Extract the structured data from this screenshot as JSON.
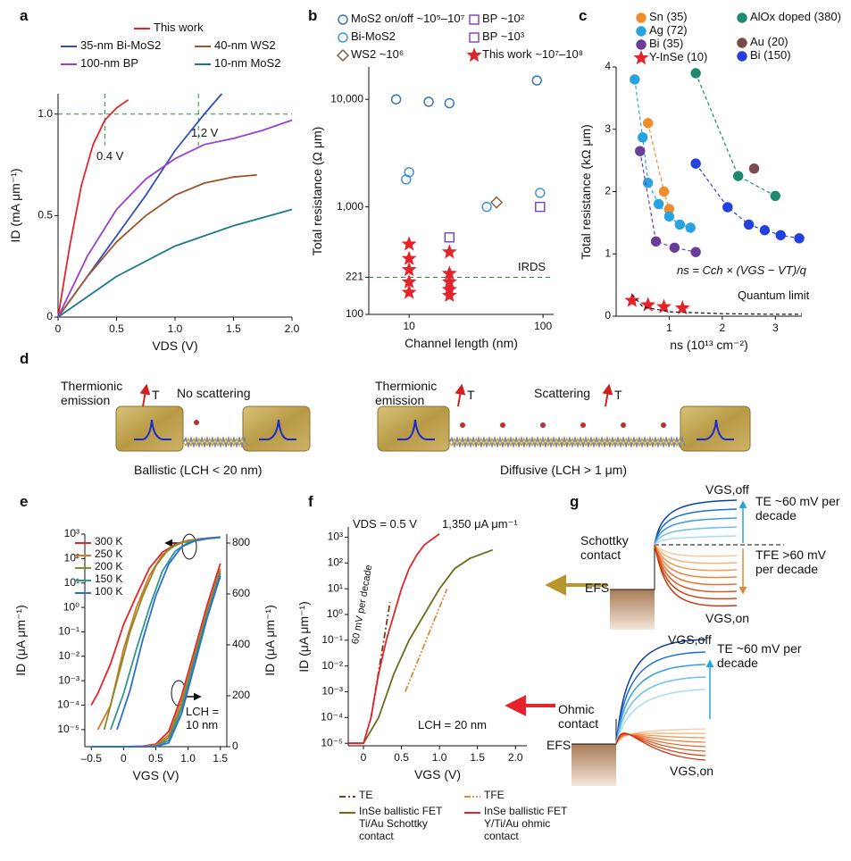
{
  "chart_data": [
    {
      "panel": "a",
      "type": "line",
      "xlabel": "VDS (V)",
      "ylabel": "ID (mA μm⁻¹)",
      "xlim": [
        0,
        2
      ],
      "xticks": [
        0,
        0.5,
        {
          "value": 1,
          "label": "1.0"
        },
        1.5,
        {
          "value": 2,
          "label": "2.0"
        }
      ],
      "ylim": [
        0,
        1.1
      ],
      "yticks": [
        0,
        0.5,
        {
          "value": 1,
          "label": "1.0"
        }
      ],
      "guides": {
        "x": [
          0.4,
          1.2
        ],
        "y": 1
      },
      "notes": [
        "0.4 V",
        "1.2 V"
      ],
      "series": [
        {
          "name": "This work",
          "color": "#e3242b",
          "x": [
            0,
            0.1,
            0.2,
            0.3,
            0.4,
            0.5,
            0.6
          ],
          "values": [
            0,
            0.35,
            0.65,
            0.85,
            0.97,
            1.03,
            1.07
          ]
        },
        {
          "name": "35-nm Bi-MoS2",
          "color": "#2f4fbf",
          "x": [
            0,
            0.25,
            0.5,
            0.75,
            1,
            1.25,
            1.4
          ],
          "values": [
            0,
            0.2,
            0.4,
            0.6,
            0.82,
            1.0,
            1.1
          ]
        },
        {
          "name": "40-nm WS2",
          "color": "#a0522d",
          "x": [
            0,
            0.25,
            0.5,
            0.75,
            1,
            1.25,
            1.5,
            1.7
          ],
          "values": [
            0,
            0.2,
            0.37,
            0.5,
            0.6,
            0.66,
            0.69,
            0.7
          ]
        },
        {
          "name": "100-nm BP",
          "color": "#9b3fd0",
          "x": [
            0,
            0.25,
            0.5,
            0.75,
            1,
            1.25,
            1.5,
            1.75,
            2
          ],
          "values": [
            0,
            0.3,
            0.53,
            0.68,
            0.78,
            0.85,
            0.88,
            0.92,
            0.97
          ]
        },
        {
          "name": "10-nm MoS2",
          "color": "#1a7a8a",
          "x": [
            0,
            0.5,
            1,
            1.5,
            2
          ],
          "values": [
            0,
            0.2,
            0.35,
            0.45,
            0.53
          ]
        }
      ]
    },
    {
      "panel": "b",
      "type": "scatter",
      "xlabel": "Channel length (nm)",
      "ylabel": "Total resistance (Ω μm)",
      "xlog": true,
      "ylog": true,
      "xlim": [
        5,
        120
      ],
      "xticks": [
        10,
        100
      ],
      "ylim": [
        100,
        20000
      ],
      "yticks": [
        100,
        221,
        {
          "value": 1000,
          "label": "1,000"
        },
        {
          "value": 10000,
          "label": "10,000"
        }
      ],
      "ref_line": 221,
      "notes": [
        "IRDS"
      ],
      "series": [
        {
          "name": "MoS2 on/off ~10⁵–10⁷",
          "color": "#2f6fb0",
          "marker": "circle",
          "filled": false,
          "x": [
            8,
            14,
            20,
            90
          ],
          "values": [
            10000,
            9500,
            9200,
            15000
          ]
        },
        {
          "name": "Bi-MoS2",
          "color": "#3a8fd0",
          "marker": "circle",
          "filled": false,
          "x": [
            9.5,
            10,
            38,
            95
          ],
          "values": [
            1800,
            2100,
            1000,
            1350
          ]
        },
        {
          "name": "WS2 ~10⁶",
          "color": "#7a5a40",
          "marker": "diamond",
          "filled": false,
          "x": [
            45
          ],
          "values": [
            1100
          ]
        },
        {
          "name": "BP ~10²",
          "color": "#7a3fb0",
          "marker": "square",
          "filled": false,
          "x": [
            20
          ],
          "values": [
            520
          ]
        },
        {
          "name": "BP ~10³",
          "color": "#7a3fb0",
          "marker": "square",
          "filled": false,
          "x": [
            95
          ],
          "values": [
            1000
          ]
        },
        {
          "name": "This work ~10⁷–10⁸",
          "color": "#e3242b",
          "marker": "star",
          "filled": true,
          "x": [
            10,
            10,
            10,
            10,
            10,
            20,
            20,
            20,
            20,
            20
          ],
          "values": [
            450,
            330,
            260,
            200,
            160,
            380,
            240,
            200,
            170,
            150
          ]
        }
      ]
    },
    {
      "panel": "c",
      "type": "scatter",
      "xlabel": "ns (10¹³ cm⁻²)",
      "ylabel": "Total resistance (kΩ μm)",
      "xlim": [
        0,
        3.5
      ],
      "xticks": [
        1,
        2,
        3
      ],
      "ylim": [
        0,
        4
      ],
      "yticks": [
        0,
        1,
        2,
        3,
        4
      ],
      "notes": [
        "ns = Cch × (VGS − VT)/q",
        "Quantum limit"
      ],
      "series": [
        {
          "name": "Sn (35)",
          "color": "#f28c28",
          "marker": "circle",
          "filled": true,
          "dash": "dashed",
          "x": [
            0.6,
            0.9,
            1.0
          ],
          "values": [
            3.1,
            2.0,
            1.72
          ]
        },
        {
          "name": "Ag (72)",
          "color": "#29a3e0",
          "marker": "circle",
          "filled": true,
          "dash": "dashed",
          "x": [
            0.35,
            0.5,
            0.6,
            0.8,
            1.0,
            1.2,
            1.4
          ],
          "values": [
            3.8,
            2.87,
            2.14,
            1.8,
            1.6,
            1.47,
            1.42
          ]
        },
        {
          "name": "Bi (35)",
          "color": "#6a3d9a",
          "marker": "circle",
          "filled": true,
          "dash": "dashed",
          "x": [
            0.45,
            0.75,
            1.1,
            1.5
          ],
          "values": [
            2.65,
            1.2,
            1.1,
            1.03
          ]
        },
        {
          "name": "Y-InSe (10)",
          "color": "#e3242b",
          "marker": "star",
          "filled": true,
          "x": [
            0.3,
            0.6,
            0.9,
            1.25
          ],
          "values": [
            0.25,
            0.18,
            0.15,
            0.13
          ]
        },
        {
          "name": "AlOx doped (380)",
          "color": "#1f8a70",
          "marker": "circle",
          "filled": true,
          "dash": "dashed",
          "x": [
            1.5,
            2.3,
            3.0
          ],
          "values": [
            3.9,
            2.25,
            1.93
          ]
        },
        {
          "name": "Au (20)",
          "color": "#7a4a4a",
          "marker": "circle",
          "filled": true,
          "x": [
            2.6
          ],
          "values": [
            2.37
          ]
        },
        {
          "name": "Bi (150)",
          "color": "#2340e0",
          "marker": "circle",
          "filled": true,
          "dash": "dashed",
          "x": [
            1.5,
            2.1,
            2.5,
            2.8,
            3.1,
            3.45
          ],
          "values": [
            2.45,
            1.75,
            1.47,
            1.38,
            1.3,
            1.25
          ]
        },
        {
          "color": "#111111",
          "dash": "dashed",
          "x": [
            0.3,
            0.5,
            1,
            2,
            3,
            3.5
          ],
          "values": [
            0.35,
            0.15,
            0.07,
            0.04,
            0.03,
            0.03
          ]
        }
      ]
    },
    {
      "panel": "e",
      "type": "line",
      "xlabel": "VGS (V)",
      "ylabel": "ID (μA μm⁻¹)",
      "y2label": "ID (μA μm⁻¹)",
      "ylog": true,
      "xlim": [
        -0.6,
        1.6
      ],
      "xticks": [
        {
          "value": -0.5,
          "label": "–0.5"
        },
        0,
        0.5,
        {
          "value": 1,
          "label": "1.0"
        },
        1.5
      ],
      "ylim": [
        2e-06,
        1000
      ],
      "yticks": [
        {
          "value": 1e-05,
          "label": "10⁻⁵"
        },
        {
          "value": 0.0001,
          "label": "10⁻⁴"
        },
        {
          "value": 0.001,
          "label": "10⁻³"
        },
        {
          "value": 0.01,
          "label": "10⁻²"
        },
        {
          "value": 0.1,
          "label": "10⁻¹"
        },
        {
          "value": 1,
          "label": "10⁰"
        },
        {
          "value": 10,
          "label": "10¹"
        },
        {
          "value": 100,
          "label": "10²"
        },
        {
          "value": 1000,
          "label": "10³"
        }
      ],
      "y2lim": [
        0,
        835
      ],
      "y2ticks": [
        0,
        200,
        400,
        600,
        800
      ],
      "notes": [
        "LCH = 10 nm"
      ],
      "series": [
        {
          "name": "300 K",
          "color": "#e3242b",
          "x": [
            -0.5,
            -0.4,
            -0.2,
            0,
            0.2,
            0.4,
            0.6,
            0.8,
            1.0,
            1.2,
            1.5
          ],
          "values": [
            0.0001,
            0.0003,
            0.005,
            0.2,
            3,
            40,
            180,
            380,
            550,
            650,
            760
          ]
        },
        {
          "name": "250 K",
          "color": "#d2782a",
          "x": [
            -0.4,
            -0.2,
            0,
            0.2,
            0.4,
            0.6,
            0.8,
            1.0,
            1.2,
            1.5
          ],
          "values": [
            1e-05,
            0.0001,
            0.02,
            1,
            20,
            140,
            350,
            530,
            640,
            750
          ]
        },
        {
          "name": "200 K",
          "color": "#8a8a2a",
          "x": [
            -0.3,
            -0.1,
            0.1,
            0.3,
            0.5,
            0.7,
            0.9,
            1.2,
            1.5
          ],
          "values": [
            1e-05,
            0.001,
            0.1,
            3,
            50,
            250,
            450,
            630,
            740
          ]
        },
        {
          "name": "150 K",
          "color": "#2a9a8a",
          "x": [
            -0.2,
            0,
            0.2,
            0.4,
            0.6,
            0.8,
            1.0,
            1.2,
            1.5
          ],
          "values": [
            1e-05,
            0.0003,
            0.02,
            1,
            30,
            200,
            450,
            620,
            740
          ]
        },
        {
          "name": "100 K",
          "color": "#2a6fd0",
          "x": [
            -0.1,
            0.1,
            0.3,
            0.5,
            0.7,
            0.9,
            1.1,
            1.3,
            1.5
          ],
          "values": [
            1e-05,
            0.0004,
            0.05,
            3,
            60,
            300,
            520,
            650,
            740
          ]
        },
        {
          "axis": "y2",
          "color": "#e3242b",
          "x": [
            -0.5,
            0,
            0.3,
            0.5,
            0.7,
            0.9,
            1.1,
            1.3,
            1.5
          ],
          "values": [
            0,
            0,
            2,
            10,
            60,
            200,
            380,
            560,
            720
          ]
        },
        {
          "axis": "y2",
          "color": "#d2782a",
          "x": [
            -0.5,
            0,
            0.3,
            0.5,
            0.7,
            0.9,
            1.1,
            1.3,
            1.5
          ],
          "values": [
            0,
            0,
            1,
            6,
            45,
            180,
            360,
            540,
            700
          ]
        },
        {
          "axis": "y2",
          "color": "#8a8a2a",
          "x": [
            -0.5,
            0,
            0.3,
            0.5,
            0.7,
            0.9,
            1.1,
            1.3,
            1.5
          ],
          "values": [
            0,
            0,
            0,
            3,
            35,
            160,
            350,
            530,
            690
          ]
        },
        {
          "axis": "y2",
          "color": "#2a9a8a",
          "x": [
            -0.5,
            0,
            0.3,
            0.5,
            0.7,
            0.9,
            1.1,
            1.3,
            1.5
          ],
          "values": [
            0,
            0,
            0,
            1,
            25,
            150,
            340,
            520,
            680
          ]
        },
        {
          "axis": "y2",
          "color": "#2a6fd0",
          "x": [
            -0.5,
            0,
            0.3,
            0.5,
            0.7,
            0.9,
            1.1,
            1.3,
            1.5
          ],
          "values": [
            0,
            0,
            0,
            0,
            15,
            130,
            320,
            510,
            670
          ]
        }
      ]
    },
    {
      "panel": "f",
      "type": "line",
      "xlabel": "VGS (V)",
      "ylabel": "ID (μA μm⁻¹)",
      "ylog": true,
      "xlim": [
        -0.2,
        2.15
      ],
      "xticks": [
        0,
        0.5,
        {
          "value": 1,
          "label": "1.0"
        },
        1.5,
        {
          "value": 2,
          "label": "2.0"
        }
      ],
      "ylim": [
        8e-06,
        2500
      ],
      "yticks": [
        {
          "value": 1e-05,
          "label": "10⁻⁵"
        },
        {
          "value": 0.0001,
          "label": "10⁻⁴"
        },
        {
          "value": 0.001,
          "label": "10⁻³"
        },
        {
          "value": 0.01,
          "label": "10⁻²"
        },
        {
          "value": 0.1,
          "label": "10⁻¹"
        },
        {
          "value": 1,
          "label": "10⁰"
        },
        {
          "value": 10,
          "label": "10¹"
        },
        {
          "value": 100,
          "label": "10²"
        },
        {
          "value": 1000,
          "label": "10³"
        }
      ],
      "notes": [
        "VDS = 0.5 V",
        "1,350 μA μm⁻¹",
        "60 mV per decade",
        "LCH = 20 nm"
      ],
      "series": [
        {
          "name": "TE",
          "color": "#7a3a1a",
          "dash": "dashdot",
          "x": [
            0.1,
            0.35
          ],
          "values": [
            0.0001,
            3
          ]
        },
        {
          "name": "InSe ballistic FET Ti/Au Schottky contact",
          "color": "#6b6b1a",
          "x": [
            -0.2,
            0,
            0.2,
            0.4,
            0.6,
            0.8,
            1.0,
            1.2,
            1.4,
            1.7
          ],
          "values": [
            1e-05,
            1e-05,
            0.0001,
            0.005,
            0.1,
            1,
            10,
            60,
            150,
            320
          ]
        },
        {
          "name": "TFE",
          "color": "#e08a3a",
          "dash": "dashdotdot",
          "x": [
            0.55,
            1.1
          ],
          "values": [
            0.001,
            10
          ]
        },
        {
          "name": "InSe ballistic FET Y/Ti/Au ohmic contact",
          "color": "#e3242b",
          "x": [
            -0.2,
            0,
            0.1,
            0.2,
            0.3,
            0.4,
            0.5,
            0.6,
            0.7,
            0.8,
            1.0
          ],
          "values": [
            1e-05,
            1e-05,
            0.0001,
            0.005,
            0.1,
            1,
            10,
            60,
            200,
            500,
            1350
          ]
        }
      ]
    }
  ],
  "panel_d": {
    "panel": "d",
    "labels": [
      "Thermionic emission",
      "T",
      "No scattering",
      "Ballistic (LCH < 20 nm)",
      "Thermionic emission",
      "T",
      "Scattering",
      "T",
      "Diffusive (LCH > 1 μm)"
    ]
  },
  "panel_g": {
    "panel": "g",
    "labels": [
      "VGS,off",
      "TE ~60 mV per decade",
      "Schottky contact",
      "TFE >60 mV per decade",
      "EFS",
      "VGS,on",
      "VGS,off",
      "TE ~60 mV per decade",
      "Ohmic contact",
      "EFS",
      "VGS,on"
    ]
  }
}
